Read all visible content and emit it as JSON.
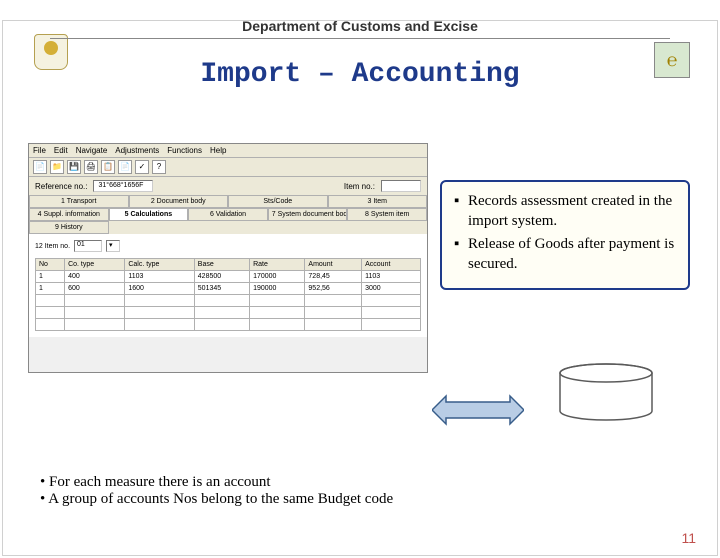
{
  "header": {
    "department": "Department of Customs and Excise",
    "logo_right_glyph": "℮"
  },
  "title": "Import – Accounting",
  "app": {
    "menubar": [
      "File",
      "Edit",
      "Navigate",
      "Adjustments",
      "Functions",
      "Help"
    ],
    "toolbar_icons": [
      "📄",
      "📁",
      "💾",
      "🖨",
      "📋",
      "📄",
      "✓",
      "?"
    ],
    "reference_label": "Reference no.:",
    "reference_value": "31°668°1656F",
    "item_no_label": "Item no.:",
    "tabs_row1": [
      "1 Transport",
      "2 Document body",
      "Sts/Code",
      "3 Item"
    ],
    "tabs_row2": [
      "4 Suppl. information",
      "5 Calculations",
      "6 Validation",
      "7 System document body",
      "8 System item",
      "9 History"
    ],
    "active_tab": 1,
    "item_selector": {
      "label": "12 Item no.",
      "value": "01"
    },
    "table": {
      "columns": [
        "No",
        "Co. type",
        "Calc. type",
        "Base",
        "Rate",
        "Amount",
        "Account"
      ],
      "rows": [
        [
          "1",
          "400",
          "1103",
          "428500",
          "170000",
          "728,45",
          "1103"
        ],
        [
          "1",
          "600",
          "1600",
          "501345",
          "190000",
          "952,56",
          "3000"
        ]
      ]
    }
  },
  "callout": {
    "items": [
      "Records assessment created in the import system.",
      "Release of Goods after payment is secured."
    ]
  },
  "footer": {
    "notes": [
      "For each measure there is an account",
      "A group of accounts Nos belong to the same Budget code"
    ],
    "page_number": "11"
  },
  "colors": {
    "title": "#1e3a8a",
    "callout_bg": "#fffef5",
    "callout_border": "#1e3a8a",
    "arrow_fill": "#B9CDE5",
    "arrow_stroke": "#385D8A",
    "cyl_stroke": "#5a5a5a",
    "page_num": "#c0504d"
  }
}
